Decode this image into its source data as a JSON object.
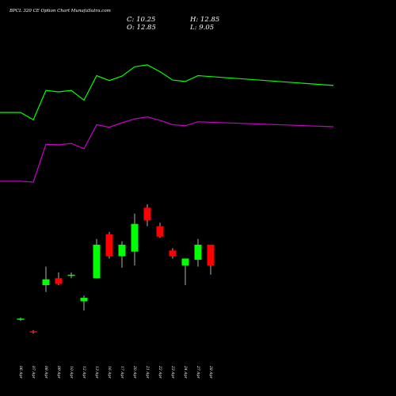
{
  "chart_data": {
    "type": "candlestick",
    "title": "BPCL 320 CE Option Chart MunafaSutra.com",
    "ohlc_summary": {
      "close": "C: 10.25",
      "open": "O: 12.85",
      "high": "H: 12.85",
      "low": "L: 9.05"
    },
    "categories": [
      "06 Apr",
      "07 Apr",
      "08 Apr",
      "09 Apr",
      "10 Apr",
      "12 Apr",
      "13 Apr",
      "16 Apr",
      "17 Apr",
      "20 Apr",
      "21 Apr",
      "22 Apr",
      "23 Apr",
      "24 Apr",
      "27 Apr",
      "28 Apr"
    ],
    "candles": [
      {
        "open": 0.9,
        "high": 1.0,
        "low": 0.85,
        "close": 0.95
      },
      {
        "open": 0.4,
        "high": 0.45,
        "low": 0.3,
        "close": 0.35
      },
      {
        "open": 2.4,
        "high": 3.2,
        "low": 2.1,
        "close": 2.65
      },
      {
        "open": 2.7,
        "high": 2.95,
        "low": 2.4,
        "close": 2.45
      },
      {
        "open": 2.8,
        "high": 2.95,
        "low": 2.7,
        "close": 2.85
      },
      {
        "open": 1.7,
        "high": 1.95,
        "low": 1.3,
        "close": 1.85
      },
      {
        "open": 2.7,
        "high": 4.4,
        "low": 2.7,
        "close": 4.15
      },
      {
        "open": 4.6,
        "high": 4.7,
        "low": 3.55,
        "close": 3.65
      },
      {
        "open": 3.65,
        "high": 4.3,
        "low": 3.15,
        "close": 4.15
      },
      {
        "open": 3.85,
        "high": 5.5,
        "low": 3.25,
        "close": 5.05
      },
      {
        "open": 5.75,
        "high": 5.9,
        "low": 4.95,
        "close": 5.2
      },
      {
        "open": 4.95,
        "high": 5.1,
        "low": 4.45,
        "close": 4.5
      },
      {
        "open": 3.9,
        "high": 4.0,
        "low": 3.55,
        "close": 3.65
      },
      {
        "open": 3.25,
        "high": 3.5,
        "low": 2.4,
        "close": 3.55
      },
      {
        "open": 3.5,
        "high": 4.4,
        "low": 3.2,
        "close": 4.15
      },
      {
        "open": 4.15,
        "high": 4.15,
        "low": 2.85,
        "close": 3.25
      }
    ],
    "upper_line": [
      10.4,
      10.4,
      10.25,
      10.85,
      10.82,
      10.85,
      10.65,
      11.15,
      11.05,
      11.14,
      11.33,
      11.37,
      11.23,
      11.06,
      11.03,
      11.15,
      10.95
    ],
    "lower_line": [
      9.0,
      9.0,
      8.98,
      9.75,
      9.74,
      9.77,
      9.66,
      10.15,
      10.1,
      10.19,
      10.27,
      10.31,
      10.24,
      10.15,
      10.13,
      10.21,
      10.11
    ],
    "line_x": [
      -0.5,
      0,
      1,
      2,
      3,
      4,
      5,
      6,
      7,
      8,
      9,
      10,
      11,
      12,
      13,
      14,
      15
    ],
    "colors": {
      "background": "#000000",
      "up": "#00ff00",
      "down": "#ff0000",
      "upper_line": "#00ff00",
      "lower_line": "#cc00cc",
      "text": "#ffffff"
    },
    "grid": false,
    "legend": "none"
  }
}
